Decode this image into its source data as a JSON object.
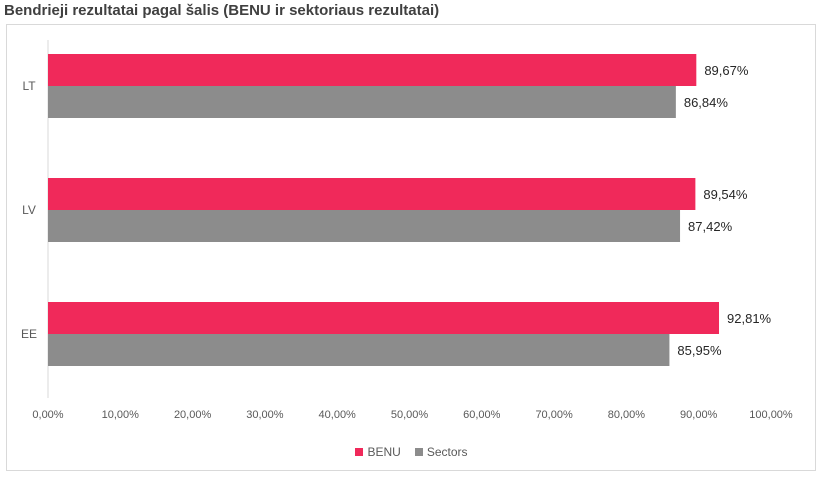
{
  "chart_data": {
    "type": "bar",
    "orientation": "horizontal",
    "title": "Bendrieji rezultatai pagal šalis (BENU ir sektoriaus rezultatai)",
    "categories": [
      "LT",
      "LV",
      "EE"
    ],
    "series": [
      {
        "name": "BENU",
        "color": "#f0295a",
        "values": [
          89.67,
          89.54,
          92.81
        ],
        "labels": [
          "89,67%",
          "89,54%",
          "92,81%"
        ]
      },
      {
        "name": "Sectors",
        "color": "#8c8c8c",
        "values": [
          86.84,
          87.42,
          85.95
        ],
        "labels": [
          "86,84%",
          "87,42%",
          "85,95%"
        ]
      }
    ],
    "xlim": [
      0,
      100
    ],
    "xticks": [
      0,
      10,
      20,
      30,
      40,
      50,
      60,
      70,
      80,
      90,
      100
    ],
    "xtick_labels": [
      "0,00%",
      "10,00%",
      "20,00%",
      "30,00%",
      "40,00%",
      "50,00%",
      "60,00%",
      "70,00%",
      "80,00%",
      "90,00%",
      "100,00%"
    ],
    "grid": false,
    "legend_position": "bottom"
  }
}
